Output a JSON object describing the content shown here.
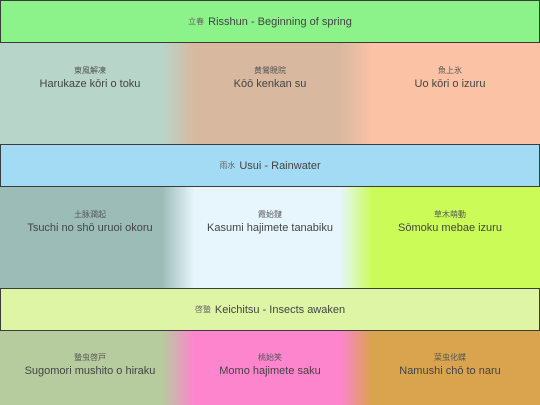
{
  "seasons": [
    {
      "kanji": "立春",
      "title": "Risshun - Beginning of spring",
      "color": "#8cf28a",
      "phases": [
        {
          "jp": "東風解凍",
          "en": "Harukaze kōri o toku",
          "color": "#b8d5c9"
        },
        {
          "jp": "黄鶯睍睆",
          "en": "Kōō kenkan su",
          "color": "#d8b9a0"
        },
        {
          "jp": "魚上氷",
          "en": "Uo kōri o izuru",
          "color": "#fcc2a6"
        }
      ]
    },
    {
      "kanji": "雨水",
      "title": "Usui - Rainwater",
      "color": "#a3dbf5",
      "phases": [
        {
          "jp": "土脉潤起",
          "en": "Tsuchi no shō uruoi okoru",
          "color": "#9cbcb7"
        },
        {
          "jp": "霞始靆",
          "en": "Kasumi hajimete tanabiku",
          "color": "#e7f6fc"
        },
        {
          "jp": "草木萌動",
          "en": "Sōmoku mebae izuru",
          "color": "#cbfb57"
        }
      ]
    },
    {
      "kanji": "啓蟄",
      "title": "Keichitsu - Insects awaken",
      "color": "#ddf5a4",
      "phases": [
        {
          "jp": "蟄虫啓戸",
          "en": "Sugomori mushito o hiraku",
          "color": "#b6cc9e"
        },
        {
          "jp": "桃始笑",
          "en": "Momo hajimete saku",
          "color": "#fd85cd"
        },
        {
          "jp": "菜虫化蝶",
          "en": "Namushi chō to naru",
          "color": "#d9a44d"
        }
      ]
    }
  ]
}
